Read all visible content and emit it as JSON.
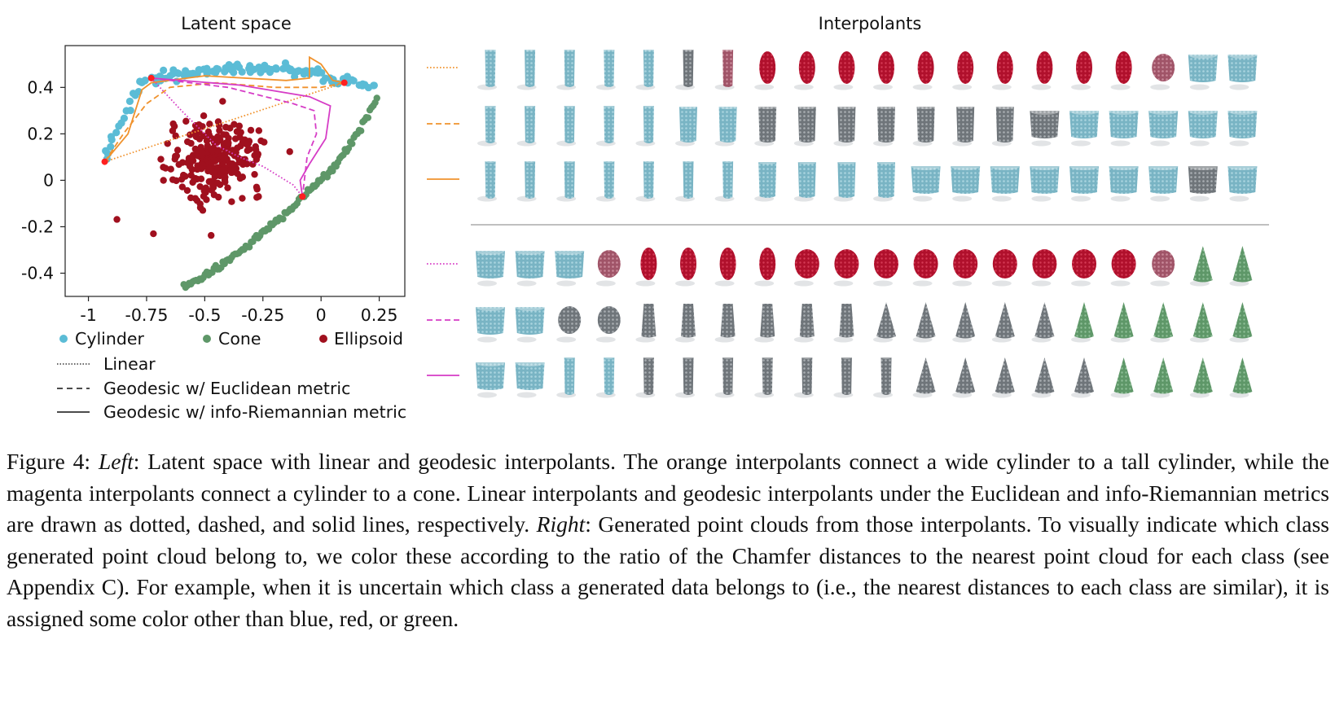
{
  "figure": {
    "left_title": "Latent space",
    "right_title": "Interpolants",
    "chart_data": {
      "type": "scatter",
      "title": "Latent space",
      "xlabel": "",
      "ylabel": "",
      "xlim": [
        -1.1,
        0.36
      ],
      "ylim": [
        -0.5,
        0.58
      ],
      "xticks": [
        -1,
        -0.75,
        -0.5,
        -0.25,
        0,
        0.25
      ],
      "xtick_labels": [
        "-1",
        "-0.75",
        "-0.5",
        "-0.25",
        "0",
        "0.25"
      ],
      "yticks": [
        0.4,
        0.2,
        0,
        -0.2,
        -0.4
      ],
      "ytick_labels": [
        "0.4",
        "0.2",
        "0",
        "-0.2",
        "-0.4"
      ],
      "grid": false,
      "legend_placement": "below",
      "series": [
        {
          "name": "Cylinder",
          "kind": "points",
          "color": "#5bbcd6"
        },
        {
          "name": "Cone",
          "kind": "points",
          "color": "#5e9768"
        },
        {
          "name": "Ellipsoid",
          "kind": "points",
          "color": "#a0101e"
        }
      ],
      "endpoints": [
        [
          -0.93,
          0.08
        ],
        [
          0.1,
          0.42
        ],
        [
          -0.73,
          0.44
        ],
        [
          -0.08,
          -0.07
        ]
      ],
      "paths": [
        {
          "name": "Linear",
          "group": "orange",
          "style": "dotted",
          "color": "#f0922d",
          "points": [
            [
              -0.93,
              0.08
            ],
            [
              0.1,
              0.42
            ]
          ]
        },
        {
          "name": "Geodesic w/ Euclidean metric",
          "group": "orange",
          "style": "dashed",
          "color": "#f0922d",
          "points": [
            [
              -0.93,
              0.08
            ],
            [
              -0.85,
              0.2
            ],
            [
              -0.75,
              0.33
            ],
            [
              -0.65,
              0.4
            ],
            [
              -0.45,
              0.42
            ],
            [
              -0.2,
              0.4
            ],
            [
              0.0,
              0.4
            ],
            [
              0.1,
              0.42
            ]
          ]
        },
        {
          "name": "Geodesic w/ info-Riemannian metric",
          "group": "orange",
          "style": "solid",
          "color": "#f0922d",
          "points": [
            [
              -0.93,
              0.08
            ],
            [
              -0.83,
              0.2
            ],
            [
              -0.77,
              0.39
            ],
            [
              -0.73,
              0.42
            ],
            [
              -0.5,
              0.45
            ],
            [
              -0.15,
              0.43
            ],
            [
              -0.05,
              0.44
            ],
            [
              -0.05,
              0.53
            ],
            [
              0.0,
              0.5
            ],
            [
              0.05,
              0.43
            ],
            [
              0.1,
              0.42
            ]
          ]
        },
        {
          "name": "Linear",
          "group": "magenta",
          "style": "dotted",
          "color": "#d63cc6",
          "points": [
            [
              -0.73,
              0.44
            ],
            [
              -0.6,
              0.3
            ],
            [
              -0.45,
              0.15
            ],
            [
              -0.35,
              0.1
            ],
            [
              -0.25,
              0.06
            ],
            [
              -0.12,
              -0.02
            ],
            [
              -0.08,
              -0.07
            ]
          ]
        },
        {
          "name": "Geodesic w/ Euclidean metric",
          "group": "magenta",
          "style": "dashed",
          "color": "#d63cc6",
          "points": [
            [
              -0.73,
              0.44
            ],
            [
              -0.4,
              0.4
            ],
            [
              -0.12,
              0.33
            ],
            [
              -0.03,
              0.3
            ],
            [
              -0.02,
              0.2
            ],
            [
              -0.06,
              0.1
            ],
            [
              -0.08,
              -0.07
            ]
          ]
        },
        {
          "name": "Geodesic w/ info-Riemannian metric",
          "group": "magenta",
          "style": "solid",
          "color": "#d63cc6",
          "points": [
            [
              -0.73,
              0.44
            ],
            [
              -0.35,
              0.41
            ],
            [
              -0.05,
              0.36
            ],
            [
              0.04,
              0.32
            ],
            [
              0.02,
              0.18
            ],
            [
              -0.05,
              0.07
            ],
            [
              -0.09,
              0.0
            ],
            [
              -0.08,
              -0.07
            ]
          ]
        }
      ]
    },
    "legend": {
      "cylinder": "Cylinder",
      "cone": "Cone",
      "ellipsoid": "Ellipsoid",
      "linear": "Linear",
      "geo_euclid": "Geodesic w/ Euclidean metric",
      "geo_riemann": "Geodesic w/ info-Riemannian metric"
    },
    "colors": {
      "cylinder": "#79b4c4",
      "cylinder_point": "#5bbcd6",
      "ellipsoid": "#b0102c",
      "ellipsoid_point": "#a0101e",
      "cone": "#5e9768",
      "cone_point": "#5e9768",
      "mixed_gray": "#7f858a",
      "mixed_pink": "#a86071",
      "orange": "#f0922d",
      "magenta": "#d63cc6"
    },
    "interpolant_rows": [
      {
        "style": "dotted",
        "color": "orange",
        "shapes": [
          "tc",
          "tc",
          "tc",
          "tc",
          "tc",
          "tg",
          "tp",
          "el",
          "el",
          "el",
          "el",
          "el",
          "el",
          "el",
          "el",
          "el",
          "el",
          "wp",
          "wc",
          "wc"
        ]
      },
      {
        "style": "dashed",
        "color": "orange",
        "shapes": [
          "tc",
          "tc",
          "tc",
          "tc",
          "tc",
          "mc",
          "mc",
          "mg",
          "mg",
          "mg",
          "mg",
          "mg",
          "mg",
          "mg",
          "wg",
          "wc",
          "wc",
          "wc",
          "wc",
          "wc"
        ]
      },
      {
        "style": "solid",
        "color": "orange",
        "shapes": [
          "tc",
          "tc",
          "tc",
          "tc",
          "tc",
          "tc",
          "tc",
          "mc",
          "mc",
          "mc",
          "mc",
          "wc",
          "wc",
          "wc",
          "wc",
          "wc",
          "wc",
          "wc",
          "wg",
          "wc"
        ]
      },
      {
        "style": "dotted",
        "color": "magenta",
        "shapes": [
          "wc",
          "wc",
          "wc",
          "pp",
          "el",
          "el",
          "el",
          "el",
          "er",
          "er",
          "er",
          "er",
          "er",
          "er",
          "er",
          "er",
          "er",
          "rp",
          "cn",
          "cn"
        ]
      },
      {
        "style": "dashed",
        "color": "magenta",
        "shapes": [
          "wc",
          "wc",
          "gp",
          "gp",
          "gq",
          "gq",
          "gq",
          "gq",
          "gq",
          "gq",
          "gk",
          "gk",
          "gk",
          "gk",
          "gk",
          "gn",
          "gn",
          "gn",
          "cn",
          "cn"
        ]
      },
      {
        "style": "solid",
        "color": "magenta",
        "shapes": [
          "wc",
          "wc",
          "tc",
          "tc",
          "tg",
          "tg",
          "tg",
          "tg",
          "tg",
          "tg",
          "tg",
          "gk",
          "gk",
          "gk",
          "gk",
          "gk",
          "gn",
          "gn",
          "cn",
          "cn"
        ]
      }
    ]
  },
  "caption": {
    "label": "Figure 4: ",
    "left": "Left",
    "text1": ": Latent space with linear and geodesic interpolants. The orange interpolants connect a wide cylinder to a tall cylinder, while the magenta interpolants connect a cylinder to a cone. Linear interpolants and geodesic interpolants under the Euclidean and info-Riemannian metrics are drawn as dotted, dashed, and solid lines, respectively. ",
    "right": "Right",
    "text2": ": Generated point clouds from those interpolants. To visually indicate which class generated point cloud belong to, we color these according to the ratio of the Chamfer distances to the nearest point cloud for each class (see Appendix C). For example, when it is uncertain which class a generated data belongs to (i.e., the nearest distances to each class are similar), it is assigned some color other than blue, red, or green."
  }
}
